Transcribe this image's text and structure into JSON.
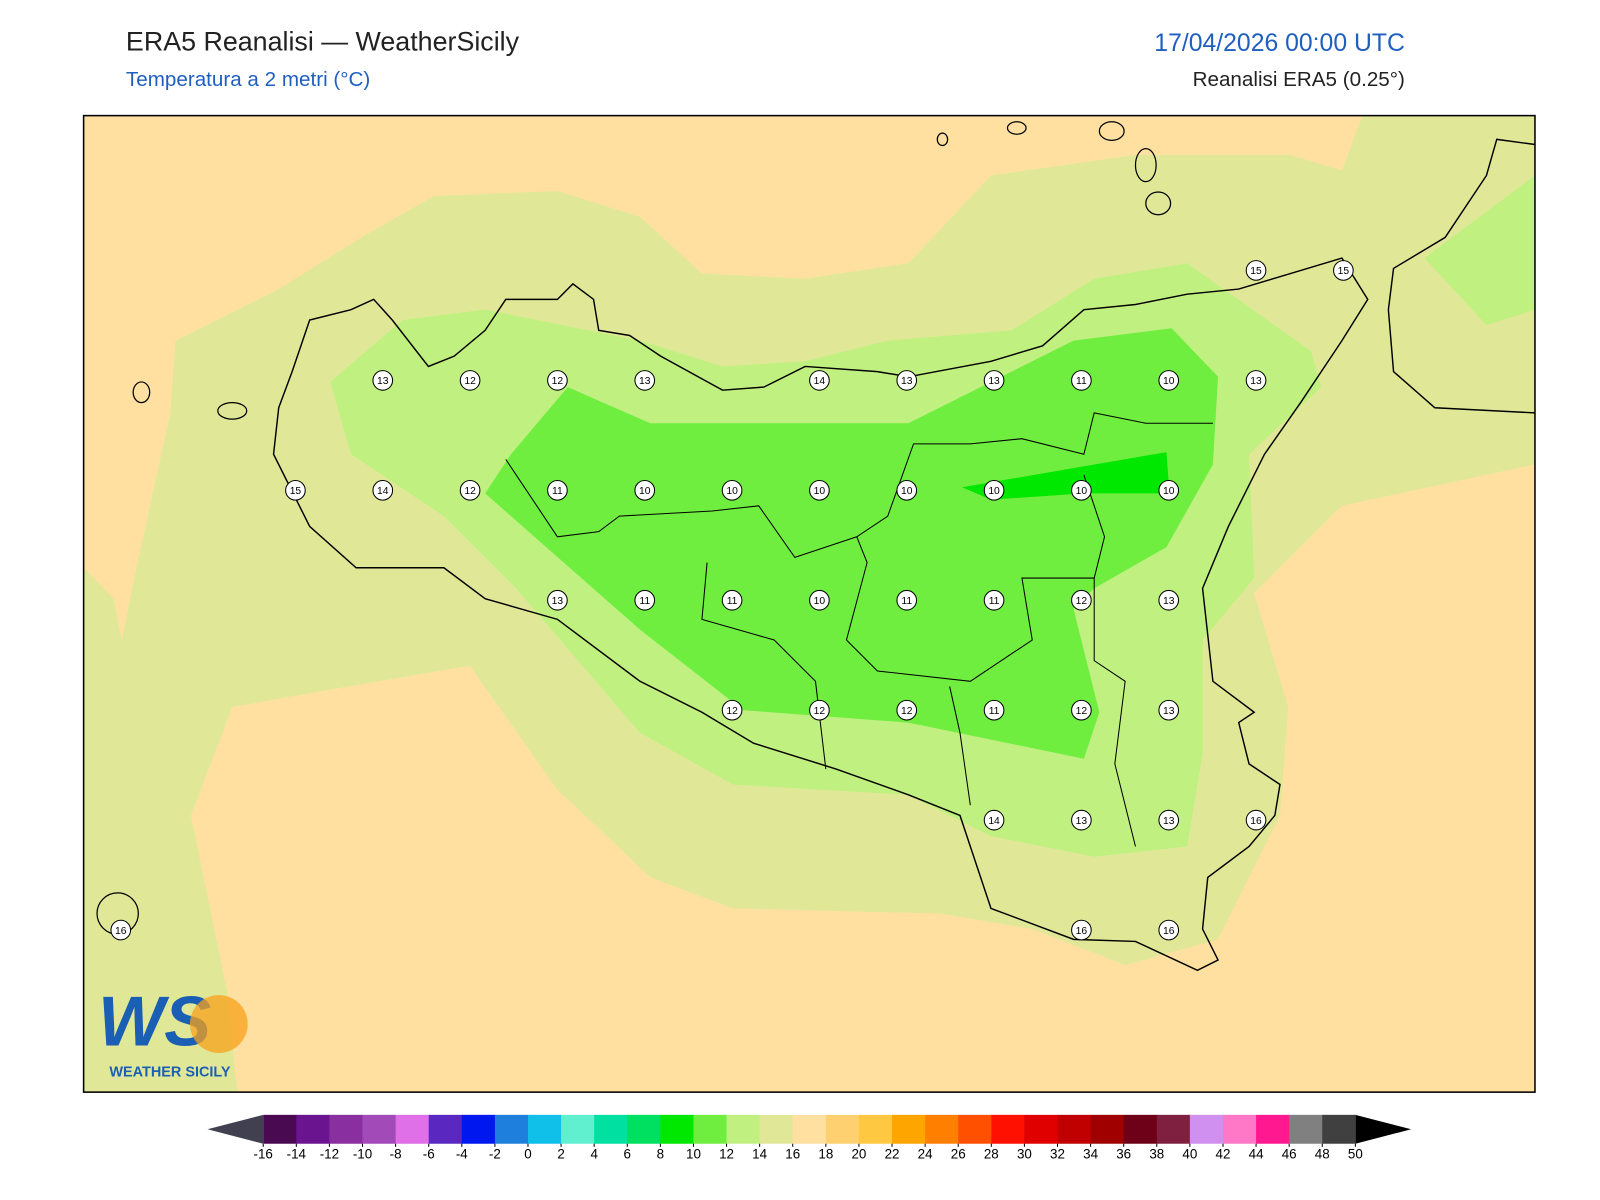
{
  "header": {
    "title": "ERA5 Reanalisi — WeatherSicily",
    "subtitle": "Temperatura a 2 metri (°C)",
    "datetime": "17/04/2026 00:00 UTC",
    "source": "Reanalisi ERA5 (0.25°)"
  },
  "stations": {
    "rows": [
      [
        null,
        null,
        null,
        null,
        null,
        null,
        null,
        null,
        null,
        null,
        null,
        null,
        null,
        15,
        15
      ],
      [
        null,
        null,
        null,
        13,
        12,
        12,
        13,
        null,
        14,
        13,
        13,
        11,
        10,
        13,
        null
      ],
      [
        null,
        null,
        15,
        14,
        12,
        11,
        10,
        10,
        10,
        10,
        10,
        10,
        10,
        null,
        null
      ],
      [
        null,
        null,
        null,
        null,
        null,
        13,
        11,
        11,
        10,
        11,
        11,
        12,
        13,
        null,
        null
      ],
      [
        null,
        null,
        null,
        null,
        null,
        null,
        null,
        12,
        12,
        12,
        11,
        12,
        13,
        null,
        null
      ],
      [
        null,
        null,
        null,
        null,
        null,
        null,
        null,
        null,
        null,
        null,
        14,
        13,
        13,
        16,
        null
      ],
      [
        16,
        null,
        null,
        null,
        null,
        null,
        null,
        null,
        null,
        null,
        null,
        16,
        16,
        null,
        null
      ]
    ]
  },
  "logo": {
    "mark": "WS",
    "text": "WEATHER SICILY"
  },
  "colorbar": {
    "levels": [
      -16,
      -14,
      -12,
      -10,
      -8,
      -6,
      -4,
      -2,
      0,
      2,
      4,
      6,
      8,
      10,
      12,
      14,
      16,
      18,
      20,
      22,
      24,
      26,
      28,
      30,
      32,
      34,
      36,
      38,
      40,
      42,
      44,
      46,
      48,
      50
    ],
    "colors": [
      "#4a0a52",
      "#6a1490",
      "#8a2fa0",
      "#a24ab8",
      "#e070e8",
      "#5a28c0",
      "#0018f0",
      "#1f7fdc",
      "#10c0e8",
      "#60f0d0",
      "#00e0a0",
      "#00e060",
      "#00e800",
      "#70ee40",
      "#c0f080",
      "#e0e898",
      "#ffe0a0",
      "#ffd070",
      "#ffc840",
      "#ffa500",
      "#ff7f00",
      "#ff5000",
      "#ff1000",
      "#e00000",
      "#c00000",
      "#a00000",
      "#6e0018",
      "#802040",
      "#d090f0",
      "#ff78c8",
      "#ff1890",
      "#808080",
      "#404040"
    ],
    "under_color": "#404050",
    "over_color": "#000000"
  }
}
